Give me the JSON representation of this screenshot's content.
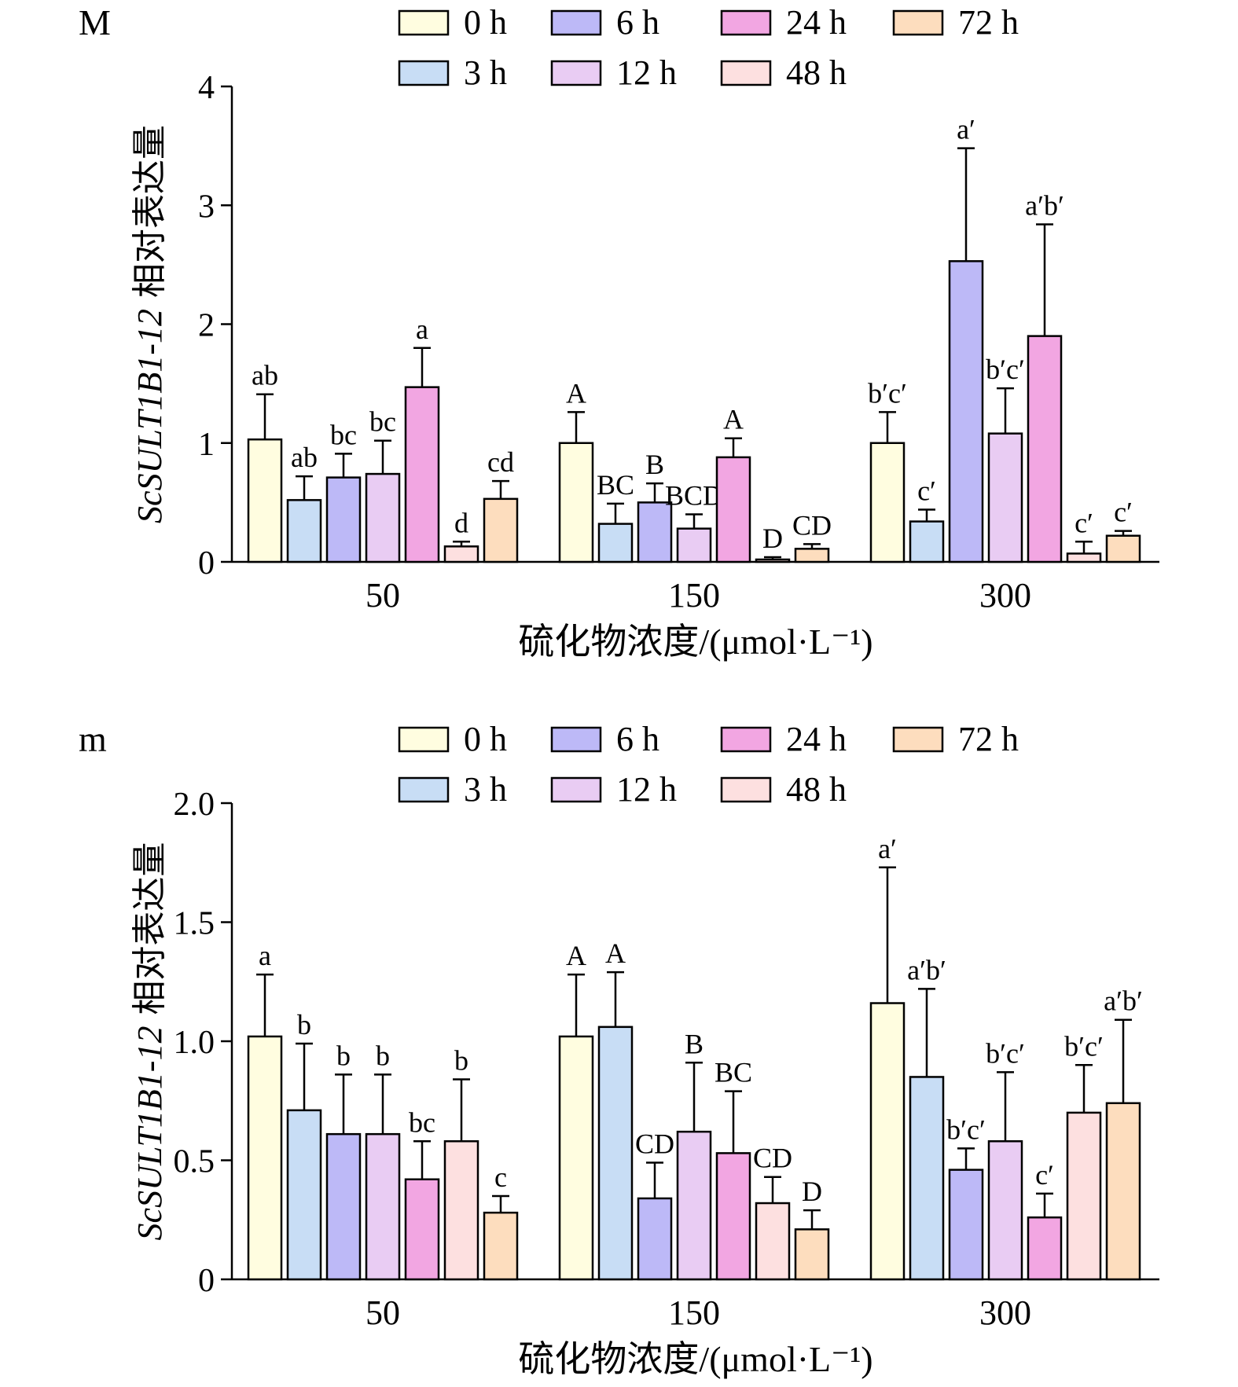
{
  "colors": {
    "0 h": "#FFFDE0",
    "3 h": "#C8DDF5",
    "6 h": "#BDB9F7",
    "12 h": "#E9CCF3",
    "24 h": "#F2A6E2",
    "48 h": "#FDE0E0",
    "72 h": "#FDDDBE"
  },
  "chart_data": [
    {
      "type": "bar",
      "panel_label": "M",
      "ylabel_italic": "ScSULT1B1-12",
      "ylabel_rest": " 相对表达量",
      "xlabel": "硫化物浓度/(μmol·L⁻¹)",
      "categories": [
        "50",
        "150",
        "300"
      ],
      "ylim": [
        0,
        4
      ],
      "yticks": [
        "0",
        "1",
        "2",
        "3",
        "4"
      ],
      "ytick_values": [
        0,
        1,
        2,
        3,
        4
      ],
      "legend_position": "top",
      "series": [
        {
          "name": "0 h",
          "values": [
            1.03,
            1.0,
            1.0
          ],
          "errors": [
            0.38,
            0.26,
            0.26
          ],
          "labels": [
            "ab",
            "A",
            "b′c′"
          ]
        },
        {
          "name": "3 h",
          "values": [
            0.52,
            0.32,
            0.34
          ],
          "errors": [
            0.2,
            0.17,
            0.1
          ],
          "labels": [
            "ab",
            "BC",
            "c′"
          ]
        },
        {
          "name": "6 h",
          "values": [
            0.71,
            0.5,
            2.53
          ],
          "errors": [
            0.2,
            0.16,
            0.95
          ],
          "labels": [
            "bc",
            "B",
            "a′"
          ]
        },
        {
          "name": "12 h",
          "values": [
            0.74,
            0.28,
            1.08
          ],
          "errors": [
            0.28,
            0.12,
            0.38
          ],
          "labels": [
            "bc",
            "BCD",
            "b′c′"
          ]
        },
        {
          "name": "24 h",
          "values": [
            1.47,
            0.88,
            1.9
          ],
          "errors": [
            0.33,
            0.16,
            0.94
          ],
          "labels": [
            "a",
            "A",
            "a′b′"
          ]
        },
        {
          "name": "48 h",
          "values": [
            0.13,
            0.02,
            0.07
          ],
          "errors": [
            0.04,
            0.02,
            0.1
          ],
          "labels": [
            "d",
            "D",
            "c′"
          ]
        },
        {
          "name": "72 h",
          "values": [
            0.53,
            0.11,
            0.22
          ],
          "errors": [
            0.15,
            0.04,
            0.04
          ],
          "labels": [
            "cd",
            "CD",
            "c′"
          ]
        }
      ]
    },
    {
      "type": "bar",
      "panel_label": "m",
      "ylabel_italic": "ScSULT1B1-12",
      "ylabel_rest": " 相对表达量",
      "xlabel": "硫化物浓度/(μmol·L⁻¹)",
      "categories": [
        "50",
        "150",
        "300"
      ],
      "ylim": [
        0,
        2.0
      ],
      "yticks": [
        "0",
        "0.5",
        "1.0",
        "1.5",
        "2.0"
      ],
      "ytick_values": [
        0,
        0.5,
        1.0,
        1.5,
        2.0
      ],
      "legend_position": "top",
      "series": [
        {
          "name": "0 h",
          "values": [
            1.02,
            1.02,
            1.16
          ],
          "errors": [
            0.26,
            0.26,
            0.57
          ],
          "labels": [
            "a",
            "A",
            "a′"
          ]
        },
        {
          "name": "3 h",
          "values": [
            0.71,
            1.06,
            0.85
          ],
          "errors": [
            0.28,
            0.23,
            0.37
          ],
          "labels": [
            "b",
            "A",
            "a′b′"
          ]
        },
        {
          "name": "6 h",
          "values": [
            0.61,
            0.34,
            0.46
          ],
          "errors": [
            0.25,
            0.15,
            0.09
          ],
          "labels": [
            "b",
            "CD",
            "b′c′"
          ]
        },
        {
          "name": "12 h",
          "values": [
            0.61,
            0.62,
            0.58
          ],
          "errors": [
            0.25,
            0.29,
            0.29
          ],
          "labels": [
            "b",
            "B",
            "b′c′"
          ]
        },
        {
          "name": "24 h",
          "values": [
            0.42,
            0.53,
            0.26
          ],
          "errors": [
            0.16,
            0.26,
            0.1
          ],
          "labels": [
            "bc",
            "BC",
            "c′"
          ]
        },
        {
          "name": "48 h",
          "values": [
            0.58,
            0.32,
            0.7
          ],
          "errors": [
            0.26,
            0.11,
            0.2
          ],
          "labels": [
            "b",
            "CD",
            "b′c′"
          ]
        },
        {
          "name": "72 h",
          "values": [
            0.28,
            0.21,
            0.74
          ],
          "errors": [
            0.07,
            0.08,
            0.35
          ],
          "labels": [
            "c",
            "D",
            "a′b′"
          ]
        }
      ]
    }
  ]
}
